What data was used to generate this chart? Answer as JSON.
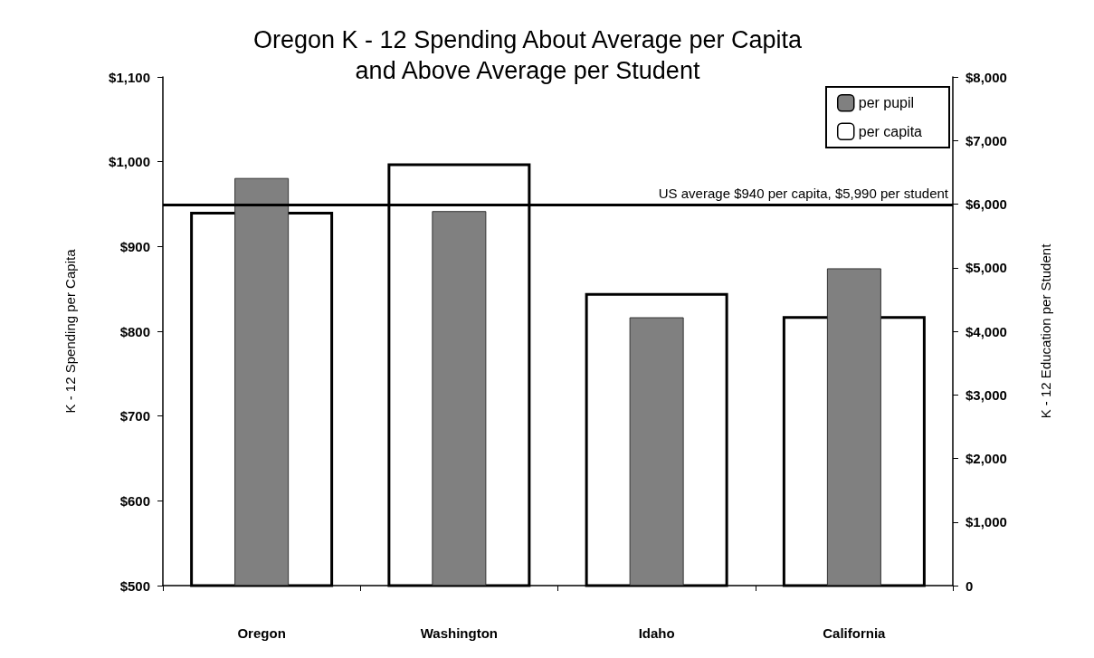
{
  "chart_data": {
    "type": "bar",
    "title": "Oregon K - 12 Spending About Average per Capita\nand Above Average per Student",
    "ylabel": "K - 12 Spending per Capita",
    "y2label": "K - 12 Education per Student",
    "categories": [
      "Oregon",
      "Washington",
      "Idaho",
      "California"
    ],
    "series": [
      {
        "name": "per pupil",
        "color": "#808080",
        "axis": "y2",
        "values": [
          6410,
          5890,
          4220,
          4990
        ]
      },
      {
        "name": "per capita",
        "color": "#ffffff",
        "values": [
          941,
          998,
          845,
          818
        ]
      }
    ],
    "ylim": [
      500,
      1100
    ],
    "yticks": [
      {
        "value": 500,
        "label": "$500"
      },
      {
        "value": 600,
        "label": "$600"
      },
      {
        "value": 700,
        "label": "$700"
      },
      {
        "value": 800,
        "label": "$800"
      },
      {
        "value": 900,
        "label": "$900"
      },
      {
        "value": 1000,
        "label": "$1,000"
      },
      {
        "value": 1100,
        "label": "$1,100"
      }
    ],
    "y2lim": [
      0,
      8000
    ],
    "y2ticks": [
      0,
      {
        "value": 1000,
        "label": "$1,000"
      },
      {
        "value": 2000,
        "label": "$2,000"
      },
      {
        "value": 3000,
        "label": "$3,000"
      },
      {
        "value": 4000,
        "label": "$4,000"
      },
      {
        "value": 5000,
        "label": "$5,000"
      },
      {
        "value": 6000,
        "label": "$6,000"
      },
      {
        "value": 7000,
        "label": "$7,000"
      },
      {
        "value": 8000,
        "label": "$8,000"
      }
    ],
    "ref_lines": [
      {
        "axis": "y2",
        "value": 5990,
        "label": "US average $940 per capita, $5,990 per student",
        "color": "#000000"
      }
    ],
    "legend": "top right",
    "grid": false
  }
}
